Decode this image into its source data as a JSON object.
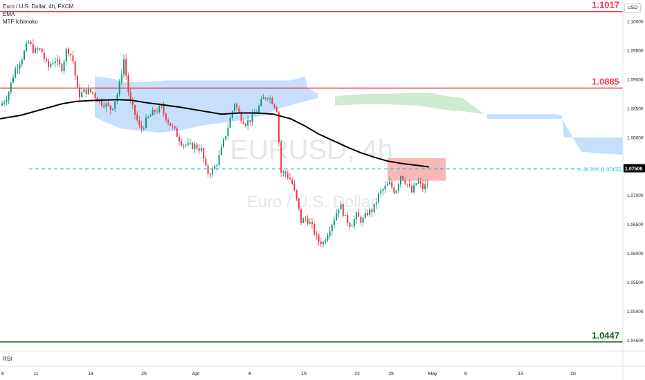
{
  "legend": {
    "symbol_line": "Euro / U.S. Dollar, 4h, FXCM",
    "indicator_ema": "EMA",
    "indicator_ichimoku": "MTF Ichimoku"
  },
  "currency_button": "USD",
  "rsi_label": "RSI",
  "watermark": {
    "ticker": "EURUSD, 4h",
    "name": "Euro / U.S. Dollar"
  },
  "colors": {
    "resistance": "#f23645",
    "support": "#1b5e20",
    "fib_line": "#00bcd4",
    "bull": "#089981",
    "bear": "#f23645",
    "ema": "#000000",
    "cloud_blue": "#bbd9fb",
    "cloud_green": "#c8e6c9",
    "zone": "#f7a6a6"
  },
  "chart_data": {
    "type": "candlestick",
    "timeframe": "4h",
    "symbol": "EURUSD",
    "x_tick_labels": [
      "6",
      "11",
      "18",
      "25",
      "Apr",
      "8",
      "15",
      "22",
      "25",
      "May",
      "6",
      "13",
      "20"
    ],
    "y_axis": {
      "ylim": [
        1.0435,
        1.1025
      ],
      "tick_labels": [
        "1.10000",
        "1.09500",
        "1.09000",
        "1.08500",
        "1.08000",
        "1.07000",
        "1.06500",
        "1.06000",
        "1.05500",
        "1.05000",
        "1.04500"
      ]
    },
    "horizontal_levels": [
      {
        "label": "1.1017",
        "value": 1.1017,
        "style": "resistance"
      },
      {
        "label": "1.0885",
        "value": 1.0885,
        "style": "resistance"
      },
      {
        "label": "1.0447",
        "value": 1.0447,
        "style": "support"
      }
    ],
    "fib_level": {
      "label": "38.20% (1.07455)",
      "value": 1.07455
    },
    "price_tag": "1.07506",
    "zone": {
      "top": 1.0764,
      "bottom": 1.0725
    },
    "close_path": [
      [
        0,
        1.0855
      ],
      [
        10,
        1.0872
      ],
      [
        20,
        1.0915
      ],
      [
        30,
        1.0935
      ],
      [
        40,
        1.0965
      ],
      [
        48,
        1.0948
      ],
      [
        58,
        1.0952
      ],
      [
        68,
        1.092
      ],
      [
        78,
        1.0935
      ],
      [
        88,
        1.0918
      ],
      [
        96,
        1.0955
      ],
      [
        104,
        1.0935
      ],
      [
        112,
        1.0872
      ],
      [
        122,
        1.088
      ],
      [
        132,
        1.0878
      ],
      [
        142,
        1.0862
      ],
      [
        150,
        1.0858
      ],
      [
        160,
        1.0848
      ],
      [
        170,
        1.088
      ],
      [
        178,
        1.0935
      ],
      [
        186,
        1.0865
      ],
      [
        194,
        1.084
      ],
      [
        202,
        1.0812
      ],
      [
        212,
        1.0832
      ],
      [
        222,
        1.0845
      ],
      [
        232,
        1.085
      ],
      [
        242,
        1.0828
      ],
      [
        252,
        1.081
      ],
      [
        262,
        1.079
      ],
      [
        272,
        1.0785
      ],
      [
        282,
        1.0785
      ],
      [
        290,
        1.0778
      ],
      [
        298,
        1.0738
      ],
      [
        306,
        1.0742
      ],
      [
        314,
        1.076
      ],
      [
        322,
        1.0792
      ],
      [
        330,
        1.0825
      ],
      [
        338,
        1.086
      ],
      [
        346,
        1.0835
      ],
      [
        354,
        1.0825
      ],
      [
        362,
        1.0832
      ],
      [
        370,
        1.0845
      ],
      [
        378,
        1.0865
      ],
      [
        386,
        1.0872
      ],
      [
        394,
        1.086
      ],
      [
        400,
        1.0845
      ],
      [
        404,
        1.074
      ],
      [
        412,
        1.0738
      ],
      [
        420,
        1.0725
      ],
      [
        428,
        1.069
      ],
      [
        434,
        1.0655
      ],
      [
        442,
        1.066
      ],
      [
        450,
        1.0645
      ],
      [
        458,
        1.0622
      ],
      [
        466,
        1.0618
      ],
      [
        474,
        1.064
      ],
      [
        482,
        1.066
      ],
      [
        490,
        1.0685
      ],
      [
        498,
        1.066
      ],
      [
        506,
        1.0648
      ],
      [
        514,
        1.0665
      ],
      [
        522,
        1.0655
      ],
      [
        530,
        1.067
      ],
      [
        538,
        1.0675
      ],
      [
        546,
        1.07
      ],
      [
        554,
        1.0712
      ],
      [
        562,
        1.072
      ],
      [
        570,
        1.0705
      ],
      [
        578,
        1.0735
      ],
      [
        586,
        1.0722
      ],
      [
        594,
        1.0705
      ],
      [
        602,
        1.0725
      ],
      [
        610,
        1.0712
      ],
      [
        618,
        1.0722
      ]
    ],
    "ema_path": [
      [
        0,
        1.0832
      ],
      [
        30,
        1.0838
      ],
      [
        60,
        1.0848
      ],
      [
        90,
        1.0858
      ],
      [
        110,
        1.0862
      ],
      [
        140,
        1.0864
      ],
      [
        170,
        1.0865
      ],
      [
        190,
        1.0864
      ],
      [
        210,
        1.086
      ],
      [
        230,
        1.0857
      ],
      [
        260,
        1.0852
      ],
      [
        290,
        1.0846
      ],
      [
        320,
        1.084
      ],
      [
        345,
        1.0842
      ],
      [
        370,
        1.0842
      ],
      [
        395,
        1.084
      ],
      [
        420,
        1.0832
      ],
      [
        440,
        1.082
      ],
      [
        460,
        1.0806
      ],
      [
        480,
        1.0795
      ],
      [
        500,
        1.0784
      ],
      [
        520,
        1.0774
      ],
      [
        540,
        1.0766
      ],
      [
        560,
        1.0759
      ],
      [
        580,
        1.0755
      ],
      [
        600,
        1.0752
      ],
      [
        620,
        1.0749
      ]
    ],
    "cloud_blue_upper": [
      [
        137,
        1.0905
      ],
      [
        160,
        1.0902
      ],
      [
        180,
        1.0895
      ],
      [
        200,
        1.0895
      ],
      [
        240,
        1.0898
      ],
      [
        290,
        1.0898
      ],
      [
        340,
        1.0898
      ],
      [
        380,
        1.0898
      ],
      [
        420,
        1.0898
      ],
      [
        440,
        1.0905
      ],
      [
        445,
        1.0885
      ],
      [
        460,
        1.0875
      ]
    ],
    "cloud_blue_lower": [
      [
        137,
        1.0835
      ],
      [
        155,
        1.0825
      ],
      [
        175,
        1.0815
      ],
      [
        200,
        1.0812
      ],
      [
        230,
        1.0808
      ],
      [
        260,
        1.0812
      ],
      [
        290,
        1.082
      ],
      [
        320,
        1.0825
      ],
      [
        350,
        1.083
      ],
      [
        380,
        1.0838
      ],
      [
        410,
        1.0852
      ],
      [
        440,
        1.0862
      ],
      [
        460,
        1.0868
      ]
    ],
    "cloud_green_upper": [
      [
        484,
        1.087
      ],
      [
        500,
        1.0873
      ],
      [
        530,
        1.0875
      ],
      [
        560,
        1.0875
      ],
      [
        590,
        1.0877
      ],
      [
        620,
        1.0877
      ],
      [
        640,
        1.0872
      ],
      [
        668,
        1.0868
      ]
    ],
    "cloud_green_lower": [
      [
        484,
        1.0855
      ],
      [
        520,
        1.0857
      ],
      [
        560,
        1.0857
      ],
      [
        600,
        1.0855
      ],
      [
        640,
        1.0848
      ],
      [
        668,
        1.0845
      ],
      [
        700,
        1.084
      ]
    ],
    "cloud_blue2_upper": [
      [
        704,
        1.084
      ],
      [
        760,
        1.084
      ],
      [
        800,
        1.084
      ],
      [
        812,
        1.0838
      ],
      [
        815,
        1.08
      ],
      [
        860,
        1.08
      ],
      [
        900,
        1.08
      ]
    ],
    "cloud_blue2_lower": [
      [
        704,
        1.0832
      ],
      [
        760,
        1.0832
      ],
      [
        800,
        1.0832
      ],
      [
        812,
        1.0832
      ],
      [
        840,
        1.0775
      ],
      [
        870,
        1.0772
      ],
      [
        900,
        1.077
      ]
    ]
  }
}
